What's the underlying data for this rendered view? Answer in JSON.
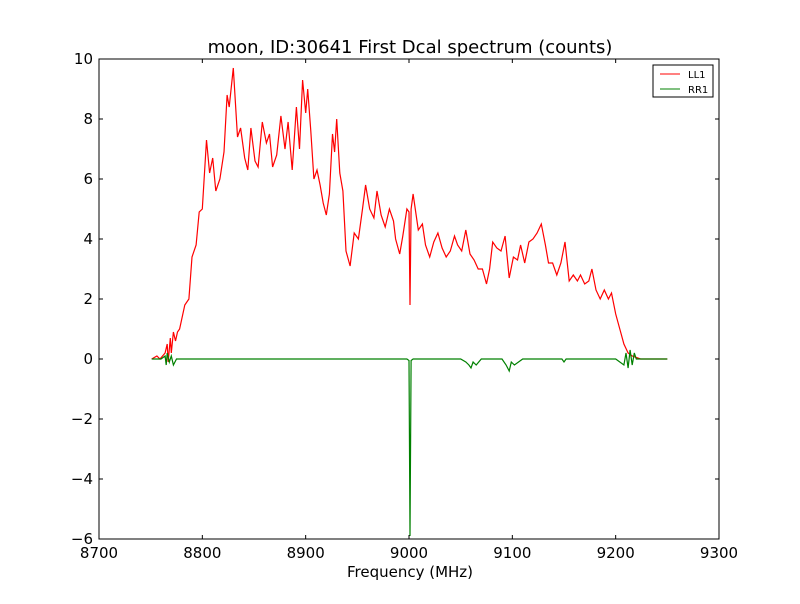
{
  "chart_data": {
    "type": "line",
    "title": "moon, ID:30641 First Dcal spectrum (counts)",
    "xlabel": "Frequency (MHz)",
    "ylabel": "",
    "xlim": [
      8700,
      9300
    ],
    "ylim": [
      -6,
      10
    ],
    "xticks": [
      8700,
      8800,
      8900,
      9000,
      9100,
      9200,
      9300
    ],
    "xtick_labels": [
      "8700",
      "8800",
      "8900",
      "9000",
      "9100",
      "9200",
      "9300"
    ],
    "yticks": [
      -6,
      -4,
      -2,
      0,
      2,
      4,
      6,
      8,
      10
    ],
    "ytick_labels": [
      "−6",
      "−4",
      "−2",
      "0",
      "2",
      "4",
      "6",
      "8",
      "10"
    ],
    "grid": false,
    "legend": {
      "placement": "top-right",
      "entries": [
        "LL1",
        "RR1"
      ]
    },
    "series": [
      {
        "name": "LL1",
        "color": "#ff0000",
        "x": [
          8751,
          8756,
          8759,
          8764,
          8766,
          8767,
          8769,
          8770,
          8772,
          8774,
          8776,
          8778,
          8783,
          8787,
          8790,
          8794,
          8797,
          8800,
          8804,
          8807,
          8810,
          8813,
          8817,
          8821,
          8824,
          8826,
          8830,
          8834,
          8837,
          8841,
          8844,
          8847,
          8851,
          8854,
          8858,
          8862,
          8865,
          8868,
          8872,
          8876,
          8880,
          8883,
          8887,
          8891,
          8894,
          8897,
          8900,
          8902,
          8905,
          8908,
          8911,
          8914,
          8917,
          8920,
          8923,
          8926,
          8928,
          8930,
          8933,
          8936,
          8939,
          8943,
          8947,
          8951,
          8955,
          8958,
          8962,
          8966,
          8969,
          8973,
          8977,
          8981,
          8985,
          8987,
          8991,
          8994,
          8998,
          9000,
          9001,
          9002,
          9004,
          9009,
          9013,
          9016,
          9020,
          9024,
          9028,
          9032,
          9036,
          9040,
          9044,
          9047,
          9051,
          9055,
          9059,
          9063,
          9067,
          9071,
          9075,
          9078,
          9081,
          9085,
          9089,
          9093,
          9097,
          9101,
          9105,
          9108,
          9112,
          9116,
          9120,
          9124,
          9128,
          9132,
          9135,
          9139,
          9143,
          9147,
          9151,
          9155,
          9159,
          9163,
          9166,
          9170,
          9174,
          9177,
          9181,
          9185,
          9189,
          9193,
          9196,
          9200,
          9204,
          9208,
          9212,
          9216,
          9220,
          9224,
          9235,
          9250
        ],
        "y": [
          0,
          0.1,
          0,
          0.2,
          0.5,
          -0.1,
          0.7,
          0.2,
          0.9,
          0.6,
          0.9,
          1.0,
          1.8,
          2.0,
          3.4,
          3.8,
          4.9,
          5.0,
          7.3,
          6.2,
          6.7,
          5.6,
          6.0,
          6.9,
          8.8,
          8.4,
          9.7,
          7.4,
          7.7,
          6.7,
          6.3,
          7.7,
          6.6,
          6.4,
          7.9,
          7.2,
          7.5,
          6.4,
          6.8,
          8.1,
          7.0,
          7.9,
          6.3,
          8.4,
          7.0,
          9.3,
          8.2,
          9.0,
          7.6,
          6.0,
          6.3,
          5.8,
          5.2,
          4.8,
          5.5,
          7.5,
          6.9,
          8.0,
          6.2,
          5.6,
          3.6,
          3.1,
          4.2,
          4.0,
          5.0,
          5.8,
          5.0,
          4.7,
          5.6,
          4.8,
          4.4,
          5.0,
          4.6,
          4.0,
          3.5,
          4.1,
          5.0,
          4.9,
          1.8,
          5.0,
          5.5,
          4.3,
          4.5,
          3.8,
          3.4,
          3.9,
          4.2,
          3.7,
          3.4,
          3.6,
          4.1,
          3.8,
          3.6,
          4.3,
          3.5,
          3.3,
          3.0,
          3.0,
          2.5,
          3.0,
          3.9,
          3.7,
          3.6,
          4.1,
          2.7,
          3.4,
          3.3,
          3.8,
          3.2,
          3.9,
          4.0,
          4.2,
          4.5,
          3.8,
          3.2,
          3.2,
          2.8,
          3.2,
          3.9,
          2.6,
          2.8,
          2.6,
          2.8,
          2.5,
          2.6,
          3.0,
          2.3,
          2.0,
          2.3,
          2.0,
          2.2,
          1.5,
          1.0,
          0.5,
          0.2,
          0.1,
          0.05,
          0,
          0,
          0
        ]
      },
      {
        "name": "RR1",
        "color": "#008000",
        "x": [
          8751,
          8760,
          8764,
          8765,
          8766,
          8768,
          8770,
          8772,
          8775,
          8780,
          8850,
          8950,
          8998,
          9000,
          9001,
          9002,
          9004,
          9050,
          9055,
          9058,
          9060,
          9062,
          9065,
          9070,
          9090,
          9094,
          9097,
          9099,
          9102,
          9110,
          9148,
          9150,
          9152,
          9200,
          9208,
          9210,
          9212,
          9214,
          9216,
          9218,
          9220,
          9230,
          9250
        ],
        "y": [
          0,
          0,
          0.1,
          -0.2,
          0.2,
          -0.1,
          0.1,
          -0.2,
          0,
          0,
          0,
          0,
          0,
          -0.05,
          -5.9,
          -0.05,
          0,
          0,
          -0.1,
          -0.2,
          -0.3,
          -0.1,
          -0.2,
          0,
          0,
          -0.2,
          -0.4,
          -0.1,
          -0.2,
          0,
          0,
          -0.1,
          0,
          0,
          -0.2,
          0.2,
          -0.3,
          0.3,
          -0.2,
          0.2,
          0,
          0,
          0
        ]
      }
    ]
  }
}
